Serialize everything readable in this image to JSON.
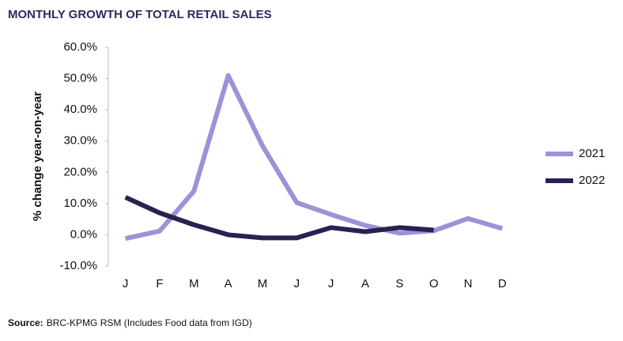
{
  "chart_data": {
    "type": "line",
    "title": "MONTHLY GROWTH OF TOTAL RETAIL SALES",
    "y_label": "% change year-on-year",
    "source_label": "Source:",
    "source_text": "BRC-KPMG RSM (Includes Food data from IGD)",
    "categories": [
      "J",
      "F",
      "M",
      "A",
      "M",
      "J",
      "J",
      "A",
      "S",
      "O",
      "N",
      "D"
    ],
    "series": [
      {
        "name": "2021",
        "color": "#9b93d8",
        "values": [
          -1.2,
          1.2,
          14,
          51,
          28.5,
          10.3,
          6.5,
          3,
          0.5,
          1.3,
          5.2,
          2
        ]
      },
      {
        "name": "2022",
        "color": "#27224f",
        "values": [
          12,
          7,
          3.2,
          0,
          -1,
          -1,
          2.3,
          1,
          2.3,
          1.5,
          null,
          null
        ]
      }
    ],
    "ylim": [
      -10,
      60
    ],
    "yticks": [
      {
        "value": -10,
        "label": "-10.0%"
      },
      {
        "value": 0,
        "label": "0.0%"
      },
      {
        "value": 10,
        "label": "10.0%"
      },
      {
        "value": 20,
        "label": "20.0%"
      },
      {
        "value": 30,
        "label": "30.0%"
      },
      {
        "value": 40,
        "label": "40.0%"
      },
      {
        "value": 50,
        "label": "50.0%"
      },
      {
        "value": 60,
        "label": "60.0%"
      }
    ],
    "grid": false,
    "legend": "right"
  }
}
